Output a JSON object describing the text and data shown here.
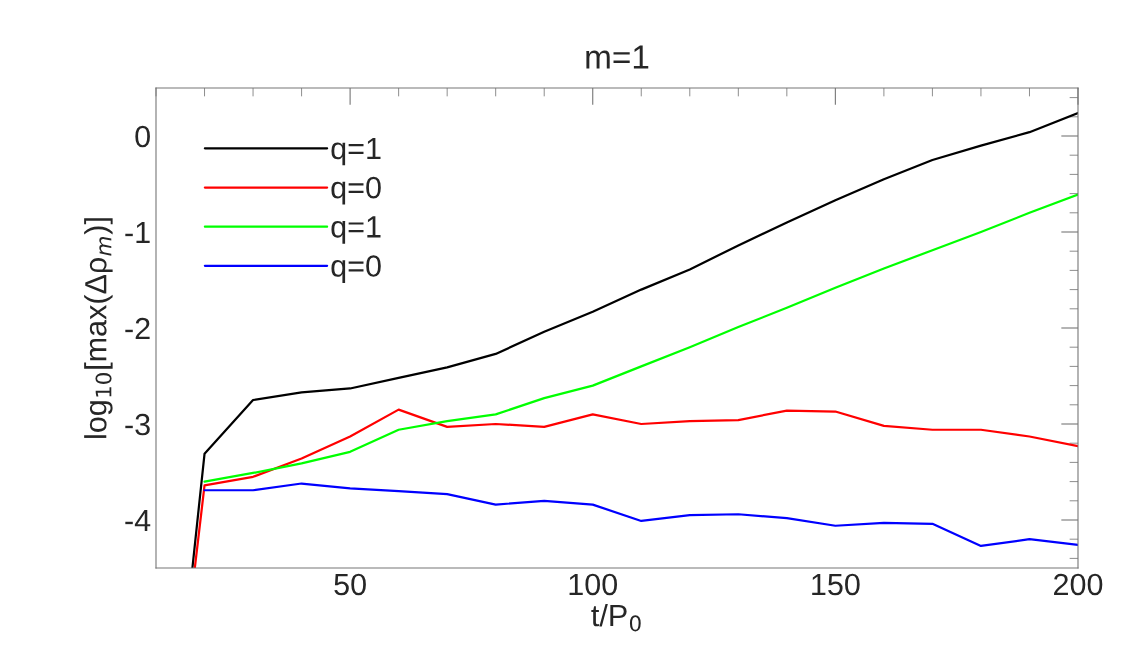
{
  "chart_data": {
    "type": "line",
    "title": "m=1",
    "xlabel": "t/P$_{0}$",
    "ylabel": "log$_{10}$[max(Δρ$_{m}$)]",
    "xlim": [
      10,
      200
    ],
    "ylim": [
      -4.5,
      0.5
    ],
    "xticks": [
      50,
      100,
      150,
      200
    ],
    "yticks": [
      -4,
      -3,
      -2,
      -1,
      0
    ],
    "grid": false,
    "legend": "top left",
    "marker": "none",
    "line_style": "solid",
    "series": [
      {
        "name": "q=1",
        "color": "#000000",
        "x": [
          17.5,
          20,
          30,
          40,
          50,
          60,
          70,
          80,
          90,
          100,
          110,
          120,
          130,
          140,
          150,
          160,
          170,
          180,
          190,
          200
        ],
        "values": [
          -4.5,
          -3.31,
          -2.75,
          -2.67,
          -2.63,
          -2.52,
          -2.41,
          -2.27,
          -2.04,
          -1.83,
          -1.6,
          -1.39,
          -1.14,
          -0.9,
          -0.67,
          -0.45,
          -0.25,
          -0.1,
          0.04,
          0.24
        ]
      },
      {
        "name": "q=0",
        "color": "#ff0000",
        "x": [
          18,
          20,
          30,
          40,
          50,
          60,
          70,
          80,
          90,
          100,
          110,
          120,
          130,
          140,
          150,
          160,
          170,
          180,
          190,
          200
        ],
        "values": [
          -4.5,
          -3.64,
          -3.55,
          -3.36,
          -3.13,
          -2.85,
          -3.03,
          -3.0,
          -3.03,
          -2.9,
          -3.0,
          -2.97,
          -2.96,
          -2.86,
          -2.87,
          -3.02,
          -3.06,
          -3.06,
          -3.13,
          -3.23
        ]
      },
      {
        "name": "q=1",
        "color": "#00ff00",
        "x": [
          20,
          30,
          40,
          50,
          60,
          70,
          80,
          90,
          100,
          110,
          120,
          130,
          140,
          150,
          160,
          170,
          180,
          190,
          200
        ],
        "values": [
          -3.6,
          -3.51,
          -3.41,
          -3.29,
          -3.06,
          -2.97,
          -2.9,
          -2.73,
          -2.6,
          -2.4,
          -2.2,
          -1.99,
          -1.79,
          -1.58,
          -1.38,
          -1.19,
          -1.0,
          -0.8,
          -0.61
        ]
      },
      {
        "name": "q=0",
        "color": "#0000ff",
        "x": [
          20,
          30,
          40,
          50,
          60,
          70,
          80,
          90,
          100,
          110,
          120,
          130,
          140,
          150,
          160,
          170,
          180,
          190,
          200
        ],
        "values": [
          -3.69,
          -3.69,
          -3.62,
          -3.67,
          -3.7,
          -3.73,
          -3.84,
          -3.8,
          -3.84,
          -4.01,
          -3.95,
          -3.94,
          -3.98,
          -4.06,
          -4.03,
          -4.04,
          -4.27,
          -4.2,
          -4.26
        ]
      }
    ]
  }
}
